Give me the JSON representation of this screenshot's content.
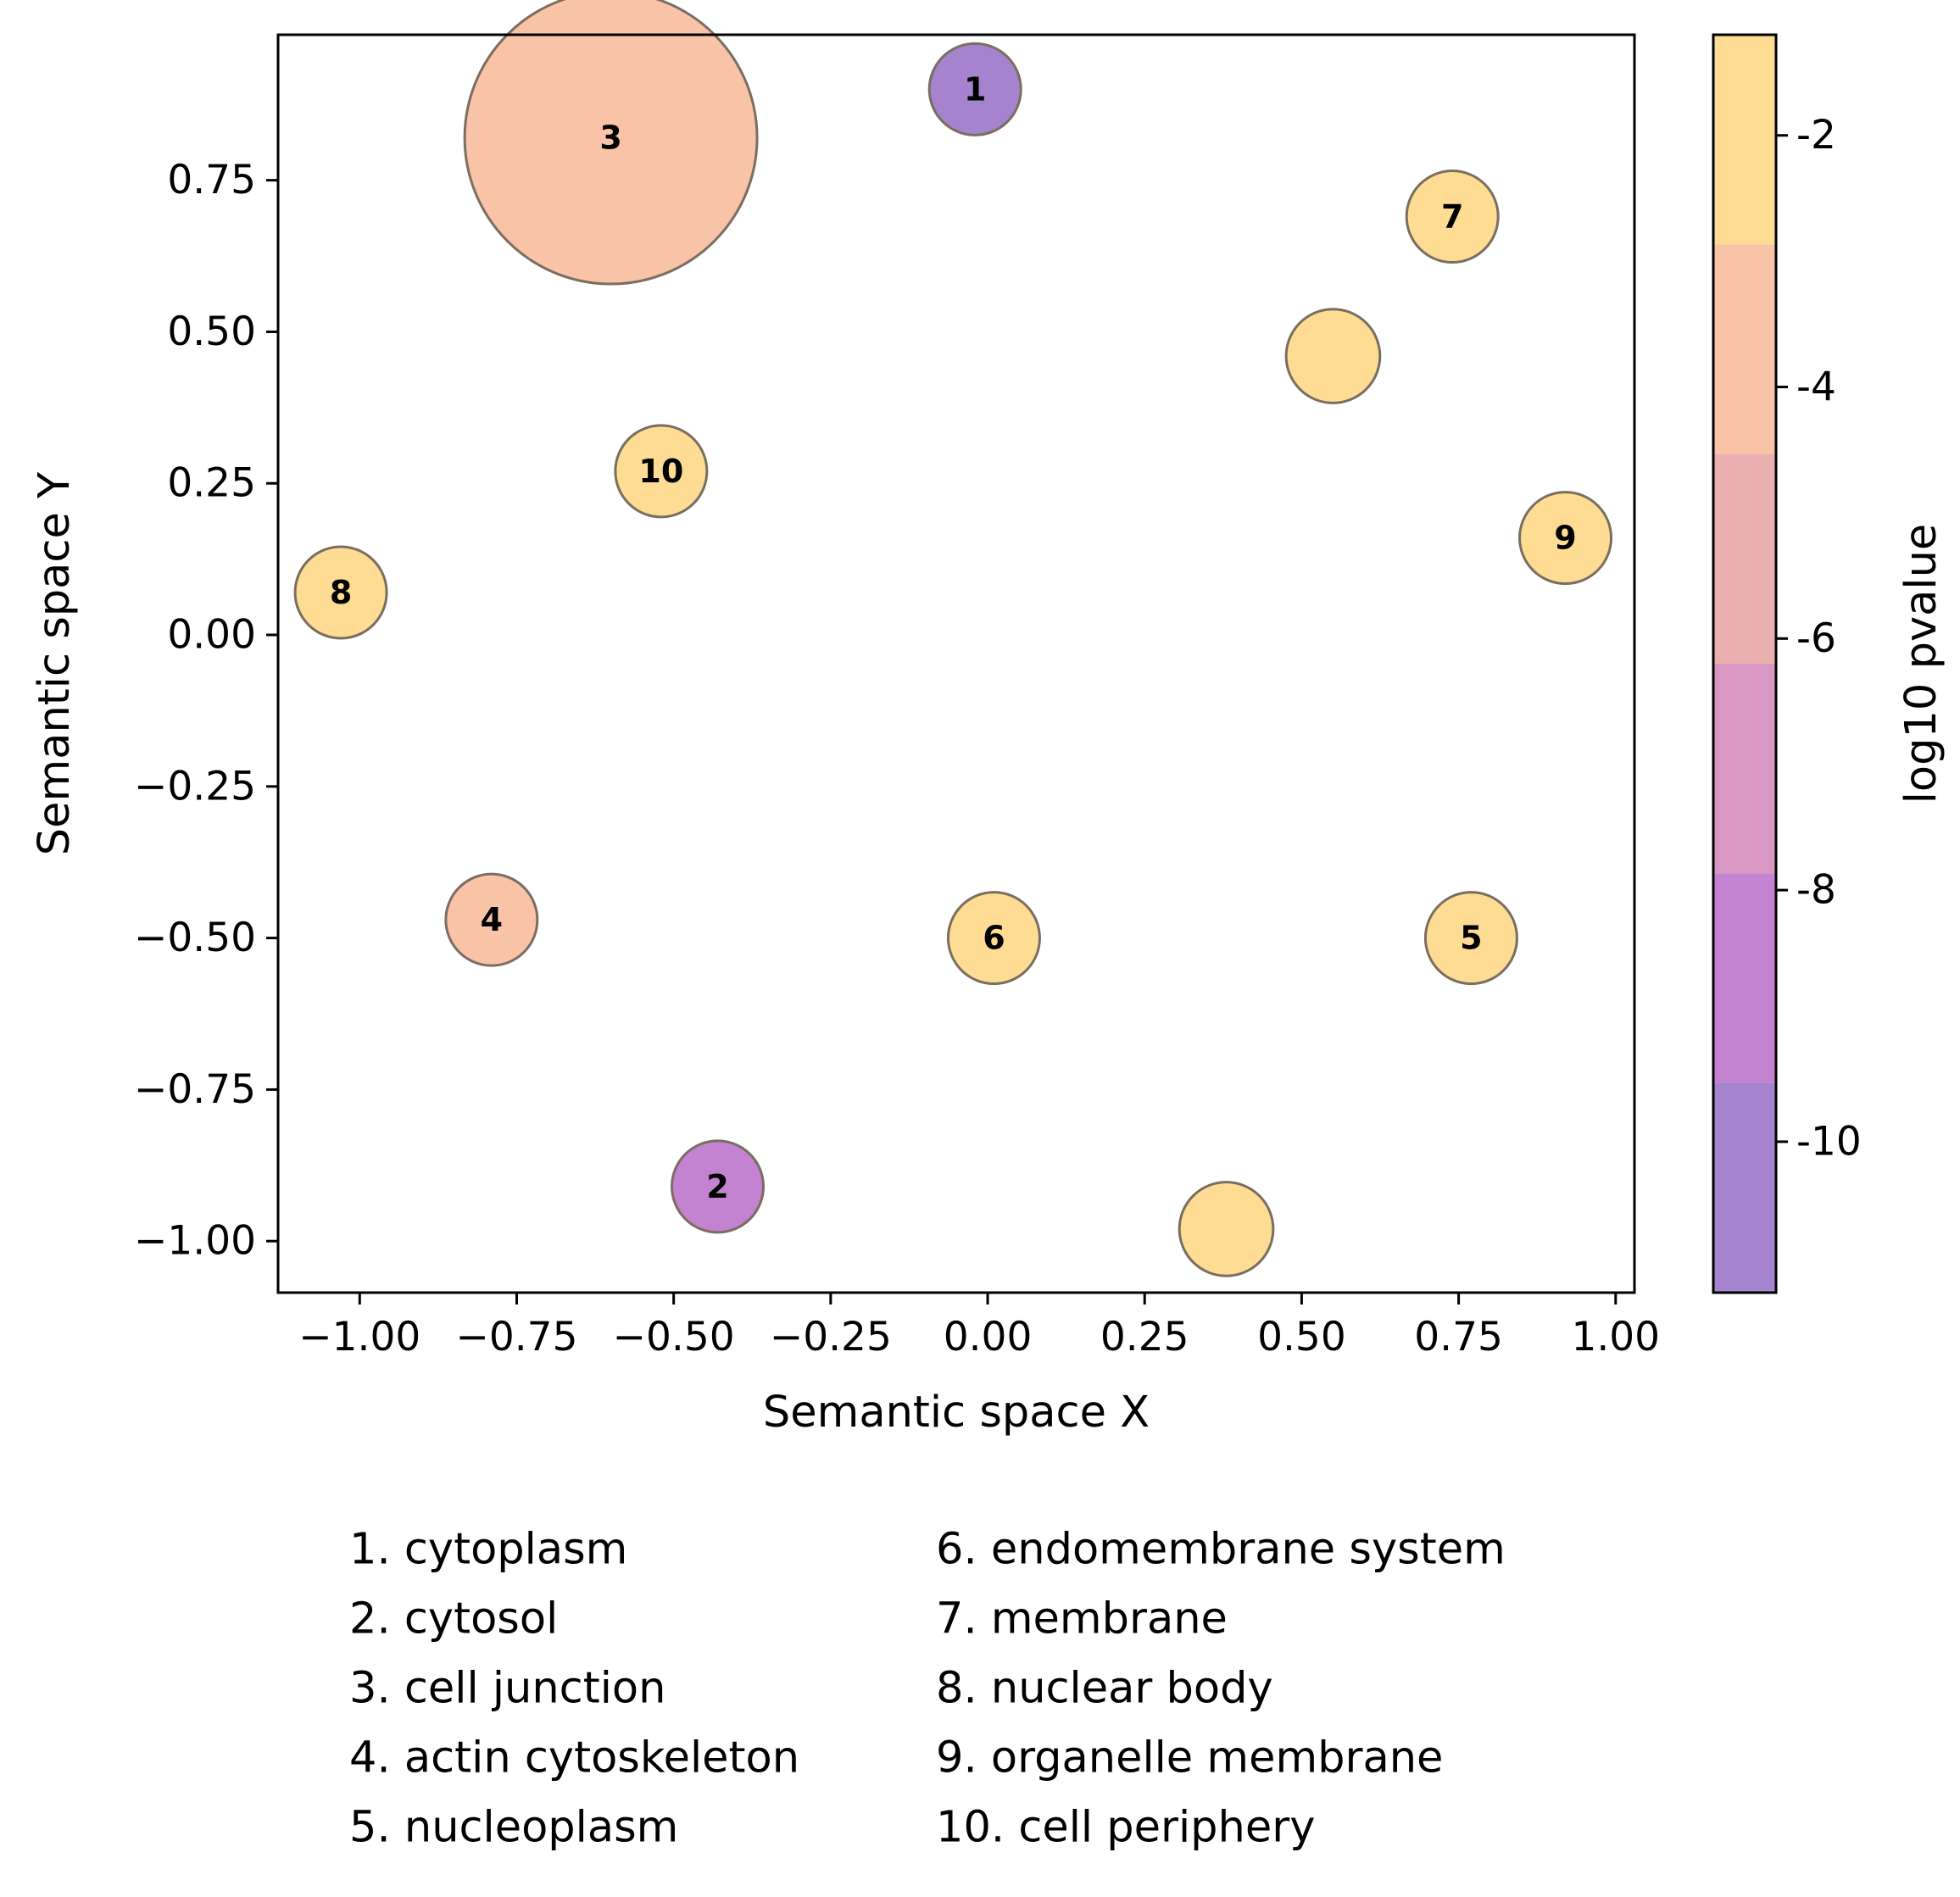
{
  "chart_data": {
    "type": "scatter",
    "xlabel": "Semantic space X",
    "ylabel": "Semantic space Y",
    "xlim": [
      -1.13,
      1.03
    ],
    "ylim": [
      -1.085,
      0.99
    ],
    "x_ticks": [
      -1.0,
      -0.75,
      -0.5,
      -0.25,
      0.0,
      0.25,
      0.5,
      0.75,
      1.0
    ],
    "x_tick_labels": [
      "−1.00",
      "−0.75",
      "−0.50",
      "−0.25",
      "0.00",
      "0.25",
      "0.50",
      "0.75",
      "1.00"
    ],
    "y_ticks": [
      0.75,
      0.5,
      0.25,
      0.0,
      -0.25,
      -0.5,
      -0.75,
      -1.0
    ],
    "y_tick_labels": [
      "0.75",
      "0.50",
      "0.25",
      "0.00",
      "−0.25",
      "−0.50",
      "−0.75",
      "−1.00"
    ],
    "points": [
      {
        "label": "1",
        "x": -0.02,
        "y": 0.9,
        "log10_pvalue": -10.5,
        "size": 1
      },
      {
        "label": "2",
        "x": -0.43,
        "y": -0.91,
        "log10_pvalue": -9.0,
        "size": 1
      },
      {
        "label": "3",
        "x": -0.6,
        "y": 0.82,
        "log10_pvalue": -3.5,
        "size": 10.2
      },
      {
        "label": "4",
        "x": -0.79,
        "y": -0.47,
        "log10_pvalue": -3.5,
        "size": 1
      },
      {
        "label": "5",
        "x": 0.77,
        "y": -0.5,
        "log10_pvalue": -1.5,
        "size": 1
      },
      {
        "label": "6",
        "x": 0.01,
        "y": -0.5,
        "log10_pvalue": -1.5,
        "size": 1
      },
      {
        "label": "7",
        "x": 0.74,
        "y": 0.69,
        "log10_pvalue": -1.5,
        "size": 1
      },
      {
        "label": "8",
        "x": -1.03,
        "y": 0.07,
        "log10_pvalue": -1.5,
        "size": 1
      },
      {
        "label": "9",
        "x": 0.92,
        "y": 0.16,
        "log10_pvalue": -1.5,
        "size": 1
      },
      {
        "label": "10",
        "x": -0.52,
        "y": 0.27,
        "log10_pvalue": -1.5,
        "size": 1
      },
      {
        "label": "",
        "x": 0.55,
        "y": 0.46,
        "log10_pvalue": -1.5,
        "size": 1.05
      },
      {
        "label": "",
        "x": 0.38,
        "y": -0.98,
        "log10_pvalue": -1.5,
        "size": 1.05
      }
    ],
    "colorbar": {
      "label": "log10 pvalue",
      "range": [
        -11.2,
        -1.2
      ],
      "ticks": [
        -2,
        -4,
        -6,
        -8,
        -10
      ],
      "tick_labels": [
        "-2",
        "-4",
        "-6",
        "-8",
        "-10"
      ],
      "bands": [
        {
          "from": -11.2,
          "to": -9.533,
          "color": "#a583ce"
        },
        {
          "from": -9.533,
          "to": -7.867,
          "color": "#c383d0"
        },
        {
          "from": -7.867,
          "to": -6.2,
          "color": "#d998c4"
        },
        {
          "from": -6.2,
          "to": -4.533,
          "color": "#eab0b0"
        },
        {
          "from": -4.533,
          "to": -2.867,
          "color": "#f8c3a6"
        },
        {
          "from": -2.867,
          "to": -1.2,
          "color": "#fedc94"
        }
      ]
    },
    "legend": [
      "1. cytoplasm",
      "2. cytosol",
      "3. cell junction",
      "4. actin cytoskeleton",
      "5. nucleoplasm",
      "6. endomembrane system",
      "7. membrane",
      "8. nuclear body",
      "9. organelle membrane",
      "10. cell periphery"
    ]
  }
}
